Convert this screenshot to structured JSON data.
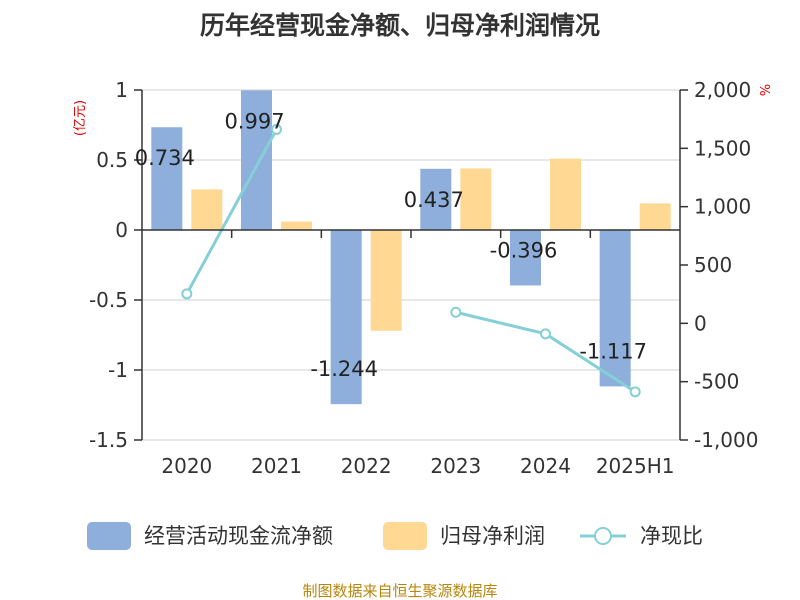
{
  "title": "历年经营现金净额、归母净利润情况",
  "source": "制图数据来自恒生聚源数据库",
  "chart_data": {
    "type": "bar",
    "categories": [
      "2020",
      "2021",
      "2022",
      "2023",
      "2024",
      "2025H1"
    ],
    "series": [
      {
        "name": "经营活动现金流净额",
        "type": "bar",
        "axis": "left",
        "color": "#8eaedc",
        "values": [
          0.734,
          0.997,
          -1.244,
          0.437,
          -0.396,
          -1.117
        ],
        "data_labels": [
          "0.734",
          "0.997",
          "-1.244",
          "0.437",
          "-0.396",
          "-1.117"
        ]
      },
      {
        "name": "归母净利润",
        "type": "bar",
        "axis": "left",
        "color": "#ffd893",
        "values": [
          0.29,
          0.06,
          -0.72,
          0.44,
          0.51,
          0.19
        ]
      },
      {
        "name": "净现比",
        "type": "line",
        "axis": "right",
        "color": "#84d0d6",
        "values": [
          253,
          1662,
          null,
          95,
          -90,
          -587
        ]
      }
    ],
    "left_axis": {
      "unit": "(亿元)",
      "ylim": [
        -1.5,
        1
      ],
      "ticks": [
        1,
        0.5,
        0,
        -0.5,
        -1,
        -1.5
      ],
      "tick_labels": [
        "1",
        "0.5",
        "0",
        "-0.5",
        "-1",
        "-1.5"
      ]
    },
    "right_axis": {
      "unit": "%",
      "ylim": [
        -1000,
        2000
      ],
      "ticks": [
        2000,
        1500,
        1000,
        500,
        0,
        -500,
        -1000
      ],
      "tick_labels": [
        "2,000",
        "1,500",
        "1,000",
        "500",
        "0",
        "-500",
        "-1,000"
      ]
    },
    "grid": true,
    "legend_position": "bottom"
  }
}
